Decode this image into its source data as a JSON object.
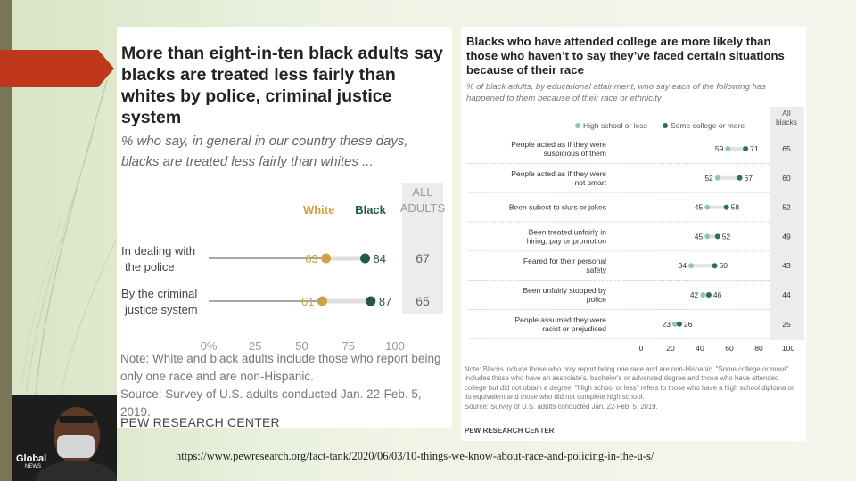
{
  "caption": "https://www.pewresearch.org/fact-tank/2020/06/03/10-things-we-know-about-race-and-policing-in-the-u-s/",
  "photo": {
    "logo_text": "Global",
    "logo_sub": "NEWS"
  },
  "colors": {
    "white": "#cda440",
    "black": "#22594a",
    "hs": "#93c5b0",
    "college": "#2a6e5c",
    "arrow": "#c0381c"
  },
  "chart_data": [
    {
      "type": "dot",
      "title": "More than eight-in-ten black adults say blacks are treated less fairly than whites by police, criminal justice system",
      "subtitle": "% who say, in general in our country these days, blacks are treated less fairly than whites ...",
      "categories": [
        "In dealing with the police",
        "By the criminal justice system"
      ],
      "series": [
        {
          "name": "White",
          "values": [
            63,
            61
          ]
        },
        {
          "name": "Black",
          "values": [
            84,
            87
          ]
        }
      ],
      "all_adults_header": "ALL ADULTS",
      "all_adults": [
        67,
        65
      ],
      "x_ticks": [
        "0%",
        "25",
        "50",
        "75",
        "100"
      ],
      "xlim": [
        0,
        100
      ],
      "note": "Note: White and black adults include those who report being only one race and are non-Hispanic.",
      "source": "Source: Survey of U.S. adults conducted Jan. 22-Feb. 5, 2019.",
      "brand": "PEW RESEARCH CENTER"
    },
    {
      "type": "dot",
      "title": "Blacks who have attended college are more likely than those who haven’t to say they’ve faced certain situations because of their race",
      "subtitle": "% of black adults, by educational attainment, who say each of the following has happened to them because of their race or ethnicity",
      "categories": [
        "People acted as if they were suspicious of them",
        "People acted as if they were not smart",
        "Been subect to slurs or jokes",
        "Been treated unfairly in hiring, pay or promotion",
        "Feared for their personal safety",
        "Been unfairly stopped by police",
        "People assumed they were racist or prejudiced"
      ],
      "series": [
        {
          "name": "High school or less",
          "values": [
            59,
            52,
            45,
            45,
            34,
            42,
            23
          ]
        },
        {
          "name": "Some college or more",
          "values": [
            71,
            67,
            58,
            52,
            50,
            46,
            26
          ]
        }
      ],
      "all_blacks_header": [
        "All",
        "blacks"
      ],
      "all_blacks": [
        65,
        60,
        52,
        49,
        43,
        44,
        25
      ],
      "x_ticks": [
        "0",
        "20",
        "40",
        "60",
        "80",
        "100"
      ],
      "xlim": [
        0,
        100
      ],
      "note": "Note: Blacks include those who only report being one race and are non-Hispanic. \"Some college or more\" includes those who have an associate's, bachelor's or advanced degree and those who have attended college but did not obtain a degree. \"High school or less\" refers to those who have a high school diploma or its equivalent and those who did not complete high school.",
      "source": "Source: Survey of U.S. adults conducted Jan. 22-Feb. 5, 2019.",
      "brand": "PEW RESEARCH CENTER"
    }
  ]
}
